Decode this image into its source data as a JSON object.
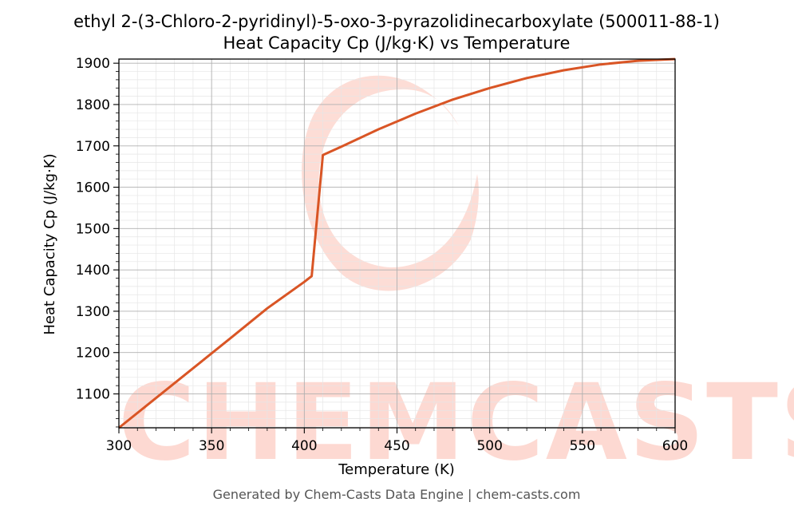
{
  "title_line1": "ethyl 2-(3-Chloro-2-pyridinyl)-5-oxo-3-pyrazolidinecarboxylate (500011-88-1)",
  "title_line2": "Heat Capacity Cp (J/kg·K) vs Temperature",
  "footer": "Generated by Chem-Casts Data Engine | chem-casts.com",
  "watermark": "CHEMCASTS",
  "colors": {
    "line": "#d95525",
    "watermark": "#fdd9d2",
    "grid_major": "#b0b0b0",
    "grid_minor": "#e6e6e6"
  },
  "chart_data": {
    "type": "line",
    "xlabel": "Temperature (K)",
    "ylabel": "Heat Capacity Cp (J/kg·K)",
    "xlim": [
      300,
      600
    ],
    "ylim": [
      1018,
      1910
    ],
    "xticks": [
      300,
      350,
      400,
      450,
      500,
      550,
      600
    ],
    "yticks": [
      1100,
      1200,
      1300,
      1400,
      1500,
      1600,
      1700,
      1800,
      1900
    ],
    "grid": true,
    "series": [
      {
        "x": [
          300,
          320,
          340,
          360,
          380,
          400,
          404,
          410,
          420,
          440,
          460,
          480,
          500,
          520,
          540,
          560,
          580,
          600
        ],
        "y": [
          1018,
          1090,
          1162,
          1234,
          1307,
          1371,
          1385,
          1678,
          1698,
          1740,
          1778,
          1812,
          1840,
          1864,
          1883,
          1897,
          1906,
          1910
        ]
      }
    ]
  }
}
